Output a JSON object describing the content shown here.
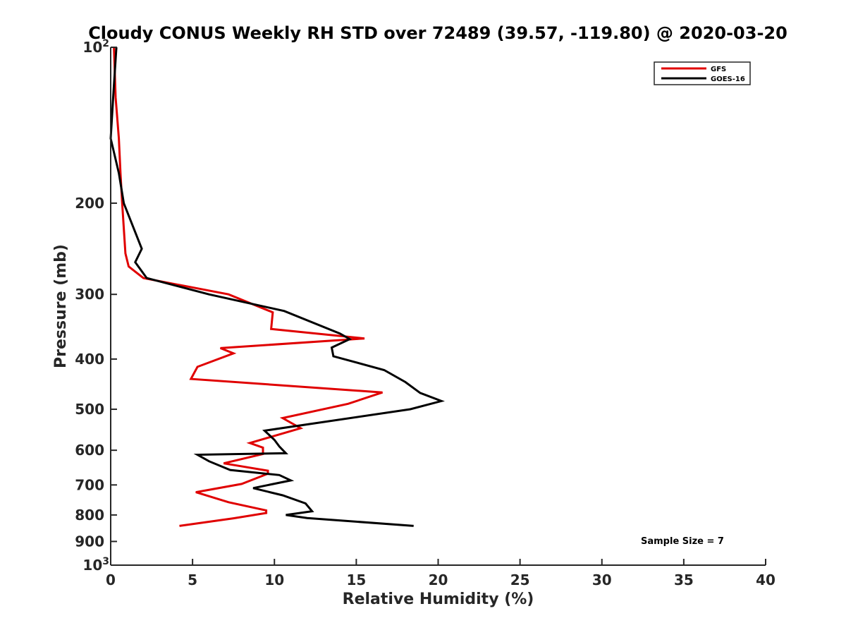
{
  "chart_data": {
    "type": "line",
    "title": "Cloudy CONUS Weekly RH STD over 72489 (39.57, -119.80) @ 2020-03-20",
    "xlabel": "Relative Humidity (%)",
    "ylabel": "Pressure (mb)",
    "xlim": [
      0,
      40
    ],
    "ylim": [
      100,
      1000
    ],
    "y_scale": "log",
    "y_reversed": true,
    "grid": false,
    "legend_position": "top-right",
    "x_ticks": [
      "0",
      "5",
      "10",
      "15",
      "20",
      "25",
      "30",
      "35",
      "40"
    ],
    "y_ticks": [
      {
        "value": 100,
        "base": "10",
        "exp": "2"
      },
      {
        "value": 200,
        "label": "200"
      },
      {
        "value": 300,
        "label": "300"
      },
      {
        "value": 400,
        "label": "400"
      },
      {
        "value": 500,
        "label": "500"
      },
      {
        "value": 600,
        "label": "600"
      },
      {
        "value": 700,
        "label": "700"
      },
      {
        "value": 800,
        "label": "800"
      },
      {
        "value": 900,
        "label": "900"
      },
      {
        "value": 1000,
        "base": "10",
        "exp": "3"
      }
    ],
    "series": [
      {
        "name": "GFS",
        "color": "#e00000",
        "points": [
          [
            0.2,
            100
          ],
          [
            0.3,
            125
          ],
          [
            0.5,
            150
          ],
          [
            0.6,
            175
          ],
          [
            0.7,
            200
          ],
          [
            0.9,
            250
          ],
          [
            1.1,
            265
          ],
          [
            2.0,
            279
          ],
          [
            7.2,
            300
          ],
          [
            9.9,
            325
          ],
          [
            9.8,
            350
          ],
          [
            15.5,
            365
          ],
          [
            6.7,
            381
          ],
          [
            7.5,
            390
          ],
          [
            5.3,
            414
          ],
          [
            4.9,
            437
          ],
          [
            16.6,
            464
          ],
          [
            14.5,
            488
          ],
          [
            10.5,
            520
          ],
          [
            11.6,
            544
          ],
          [
            8.5,
            581
          ],
          [
            9.3,
            593
          ],
          [
            9.3,
            610
          ],
          [
            6.9,
            636
          ],
          [
            9.6,
            657
          ],
          [
            9.6,
            666
          ],
          [
            8.0,
            697
          ],
          [
            5.2,
            723
          ],
          [
            7.2,
            756
          ],
          [
            9.5,
            784
          ],
          [
            9.5,
            793
          ],
          [
            7.5,
            812
          ],
          [
            4.2,
            840
          ]
        ]
      },
      {
        "name": "GOES-16",
        "color": "#000000",
        "points": [
          [
            0.35,
            100
          ],
          [
            0.15,
            125
          ],
          [
            0.0,
            150
          ],
          [
            0.5,
            175
          ],
          [
            0.8,
            200
          ],
          [
            1.9,
            245
          ],
          [
            1.5,
            260
          ],
          [
            2.2,
            279
          ],
          [
            6.0,
            300
          ],
          [
            10.6,
            323
          ],
          [
            14.0,
            357
          ],
          [
            14.6,
            366
          ],
          [
            13.5,
            380
          ],
          [
            13.6,
            395
          ],
          [
            16.7,
            420
          ],
          [
            18.0,
            443
          ],
          [
            18.9,
            465
          ],
          [
            20.2,
            482
          ],
          [
            18.3,
            500
          ],
          [
            9.4,
            550
          ],
          [
            10.0,
            573
          ],
          [
            10.3,
            590
          ],
          [
            10.7,
            608
          ],
          [
            5.3,
            612
          ],
          [
            6.0,
            630
          ],
          [
            7.3,
            655
          ],
          [
            10.3,
            670
          ],
          [
            11.0,
            686
          ],
          [
            8.7,
            710
          ],
          [
            10.5,
            733
          ],
          [
            11.9,
            760
          ],
          [
            12.3,
            787
          ],
          [
            10.7,
            800
          ],
          [
            12.0,
            811
          ],
          [
            18.5,
            840
          ]
        ]
      }
    ],
    "annotation": "Sample Size = 7"
  }
}
